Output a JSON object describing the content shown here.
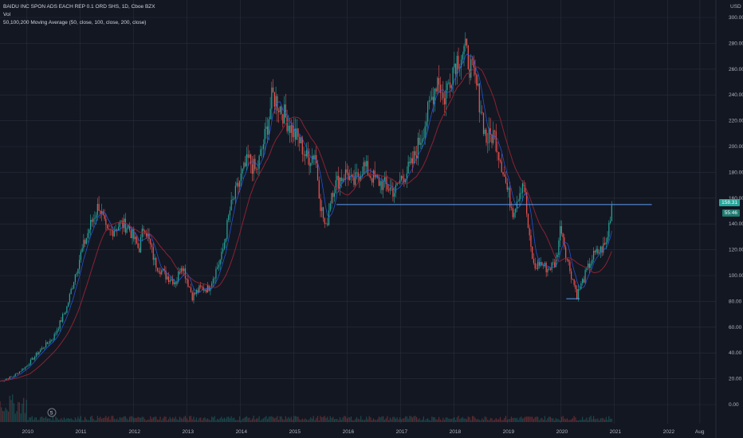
{
  "legend": {
    "symbol": "BAIDU INC SPON ADS EACH REP 0.1 ORD SHS, 1D, Cboe BZX",
    "vol": "Vol",
    "ma": "50,100,200 Moving Average (50, close, 100, close, 200, close)"
  },
  "currency": "USD",
  "price_tags": {
    "last": "158.31",
    "countdown": "55:46"
  },
  "earnings_marker": "S",
  "colors": {
    "bg": "#131722",
    "grid": "#2a2e39",
    "up": "#26a69a",
    "down": "#ef5350",
    "ma_long": "#8b2232",
    "ma_short": "#2962ff",
    "hline": "#5b9cf6"
  },
  "chart_data": {
    "type": "line",
    "title": "",
    "x_tick_labels": [
      "2010",
      "2011",
      "2012",
      "2013",
      "2014",
      "2015",
      "2016",
      "2017",
      "2018",
      "2019",
      "2020",
      "2021",
      "2022",
      "Aug"
    ],
    "y_tick_labels": [
      "0.00",
      "20.00",
      "40.00",
      "60.00",
      "80.00",
      "100.00",
      "120.00",
      "140.00",
      "160.00",
      "180.00",
      "200.00",
      "220.00",
      "240.00",
      "260.00",
      "280.00",
      "300.00"
    ],
    "ylim": [
      0,
      300
    ],
    "xlim": [
      2009.5,
      2022.9
    ],
    "series": [
      {
        "x": [
          2009.5,
          2009.75,
          2010.0,
          2010.25,
          2010.5,
          2010.75,
          2010.9,
          2011.0,
          2011.2,
          2011.35,
          2011.5,
          2011.75,
          2011.9,
          2012.1,
          2012.2,
          2012.4,
          2012.6,
          2012.8,
          2012.9,
          2013.1,
          2013.25,
          2013.4,
          2013.5,
          2013.65,
          2013.8,
          2014.0,
          2014.15,
          2014.3,
          2014.5,
          2014.6,
          2014.75,
          2014.9,
          2015.0,
          2015.1,
          2015.25,
          2015.4,
          2015.5,
          2015.6,
          2015.7,
          2015.85,
          2016.0,
          2016.1,
          2016.3,
          2016.5,
          2016.7,
          2016.9,
          2017.0,
          2017.2,
          2017.4,
          2017.6,
          2017.7,
          2017.8,
          2017.9,
          2018.0,
          2018.2,
          2018.4,
          2018.5,
          2018.6,
          2018.75,
          2018.9,
          2019.0,
          2019.1,
          2019.3,
          2019.4,
          2019.5,
          2019.6,
          2019.75,
          2019.9,
          2020.0,
          2020.1,
          2020.2,
          2020.3,
          2020.45,
          2020.6,
          2020.75,
          2020.85,
          2020.95
        ],
        "values": [
          18,
          22,
          30,
          42,
          52,
          75,
          100,
          115,
          140,
          155,
          132,
          140,
          138,
          120,
          140,
          110,
          100,
          95,
          110,
          84,
          90,
          90,
          100,
          115,
          150,
          175,
          190,
          180,
          215,
          240,
          230,
          218,
          210,
          205,
          190,
          195,
          155,
          135,
          165,
          175,
          180,
          170,
          185,
          175,
          170,
          165,
          175,
          185,
          210,
          240,
          255,
          235,
          250,
          265,
          275,
          250,
          230,
          205,
          210,
          185,
          165,
          150,
          175,
          130,
          105,
          110,
          105,
          110,
          140,
          115,
          100,
          85,
          100,
          115,
          120,
          125,
          155
        ]
      }
    ],
    "horizontal_lines": [
      {
        "y": 155
      },
      {
        "y": 82
      }
    ],
    "grid": true
  }
}
